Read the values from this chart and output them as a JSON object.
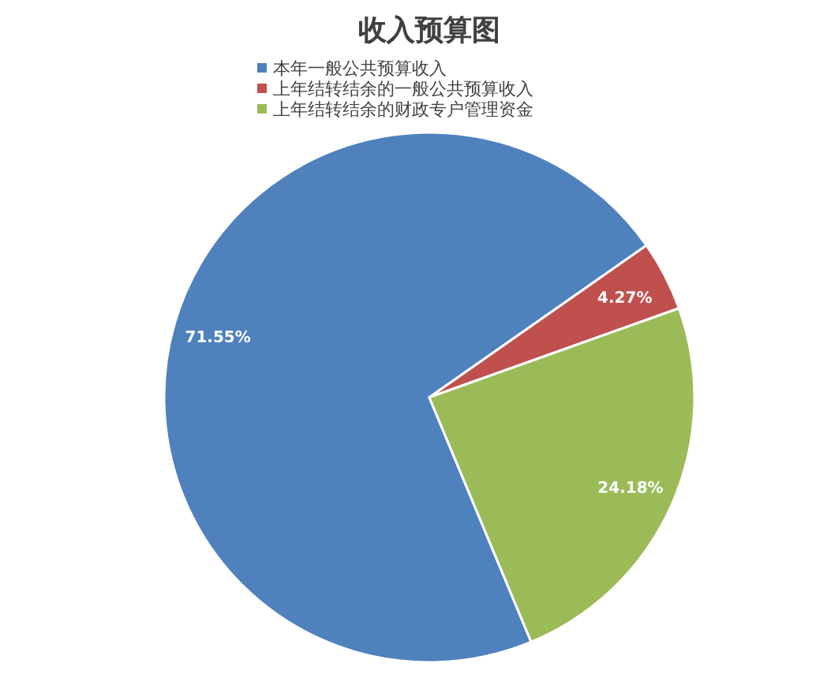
{
  "chart_data": {
    "type": "pie",
    "title": "收入预算图",
    "categories": [
      "本年一般公共预算收入",
      "上年结转结余的一般公共预算收入",
      "上年结转结余的财政专户管理资金"
    ],
    "values": [
      71.55,
      4.27,
      24.18
    ],
    "colors": [
      "#4f81bd",
      "#c0504d",
      "#9bbb59"
    ],
    "value_labels": [
      "71.55%",
      "4.27%",
      "24.18%"
    ],
    "legend": "top"
  }
}
